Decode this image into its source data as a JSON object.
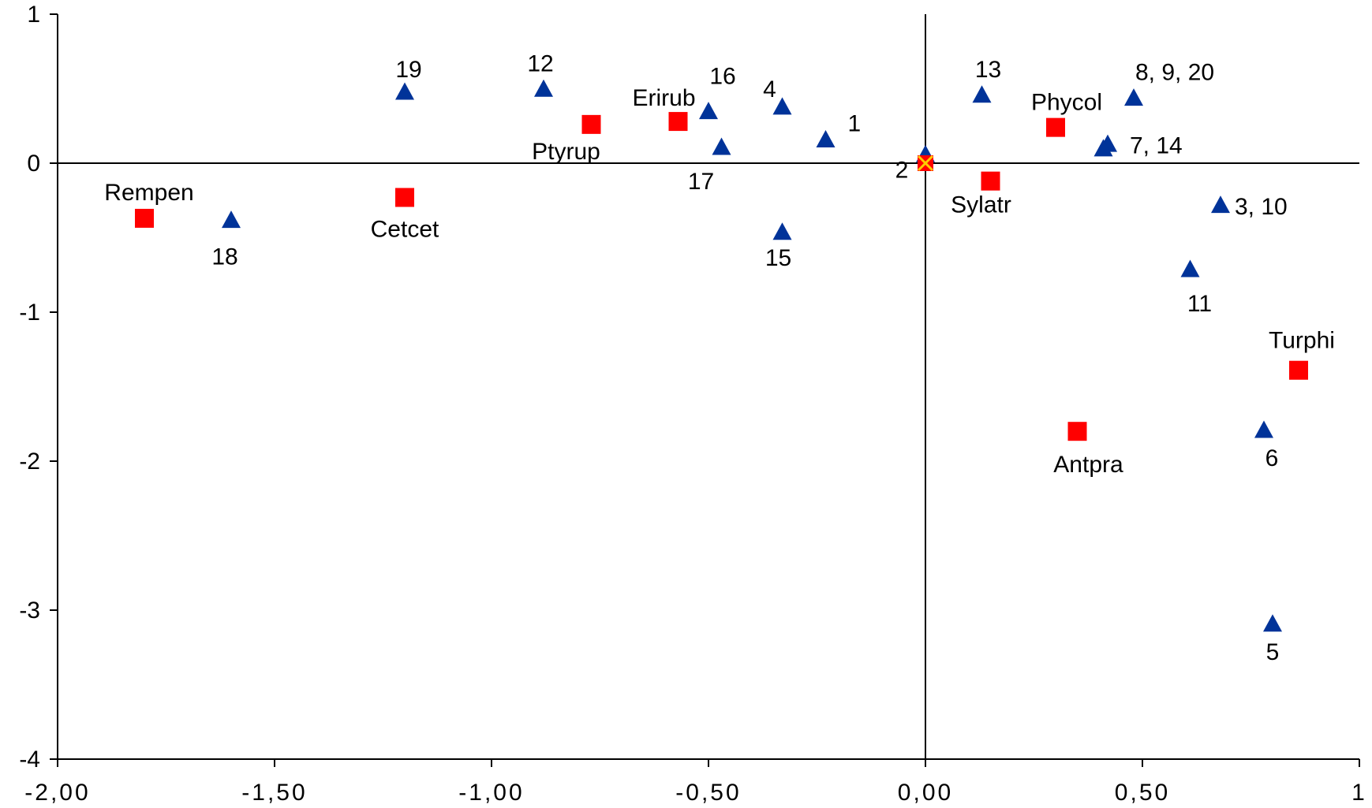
{
  "chart_data": {
    "type": "scatter",
    "title": "",
    "xlabel": "",
    "ylabel": "",
    "xlim": [
      -2,
      1
    ],
    "ylim": [
      -4,
      1
    ],
    "x_ticks": [
      -2,
      -1.5,
      -1,
      -0.5,
      0,
      0.5,
      1
    ],
    "x_tick_labels": [
      "-2,00",
      "-1,50",
      "-1,00",
      "-0,50",
      "0,00",
      "0,50",
      "1"
    ],
    "y_ticks": [
      1,
      0,
      -1,
      -2,
      -3,
      -4
    ],
    "y_tick_labels": [
      "1",
      "0",
      "-1",
      "-2",
      "-3",
      "-4"
    ],
    "zero_axes": true,
    "grid": false,
    "legend": "none",
    "colors": {
      "sites": "#003399",
      "species": "#ff0000",
      "origin": "#ffcc00"
    },
    "series": [
      {
        "marker": "triangle",
        "points": [
          {
            "label": "1",
            "x": -0.23,
            "y": 0.15
          },
          {
            "label": "2",
            "x": 0.0,
            "y": 0.05
          },
          {
            "label": "3, 10",
            "x": 0.68,
            "y": -0.29
          },
          {
            "label": "4",
            "x": -0.33,
            "y": 0.37
          },
          {
            "label": "5",
            "x": 0.8,
            "y": -3.1
          },
          {
            "label": "6",
            "x": 0.78,
            "y": -1.8
          },
          {
            "label": "7, 14",
            "x": 0.42,
            "y": 0.12
          },
          {
            "label": "",
            "x": 0.41,
            "y": 0.09
          },
          {
            "label": "8, 9, 20",
            "x": 0.48,
            "y": 0.43
          },
          {
            "label": "11",
            "x": 0.61,
            "y": -0.72
          },
          {
            "label": "12",
            "x": -0.88,
            "y": 0.49
          },
          {
            "label": "13",
            "x": 0.13,
            "y": 0.45
          },
          {
            "label": "15",
            "x": -0.33,
            "y": -0.47
          },
          {
            "label": "16",
            "x": -0.5,
            "y": 0.34
          },
          {
            "label": "17",
            "x": -0.47,
            "y": 0.1
          },
          {
            "label": "18",
            "x": -1.6,
            "y": -0.39
          },
          {
            "label": "19",
            "x": -1.2,
            "y": 0.47
          }
        ]
      },
      {
        "marker": "square",
        "points": [
          {
            "label": "Rempen",
            "x": -1.8,
            "y": -0.37
          },
          {
            "label": "Cetcet",
            "x": -1.2,
            "y": -0.23
          },
          {
            "label": "Ptyrup",
            "x": -0.77,
            "y": 0.26
          },
          {
            "label": "Erirub",
            "x": -0.57,
            "y": 0.28
          },
          {
            "label": "Sylatr",
            "x": 0.15,
            "y": -0.12
          },
          {
            "label": "Phycol",
            "x": 0.3,
            "y": 0.24
          },
          {
            "label": "Antpra",
            "x": 0.35,
            "y": -1.8
          },
          {
            "label": "Turphi",
            "x": 0.86,
            "y": -1.39
          }
        ]
      },
      {
        "marker": "x",
        "points": [
          {
            "label": "",
            "x": 0.0,
            "y": 0.0
          }
        ]
      }
    ]
  }
}
